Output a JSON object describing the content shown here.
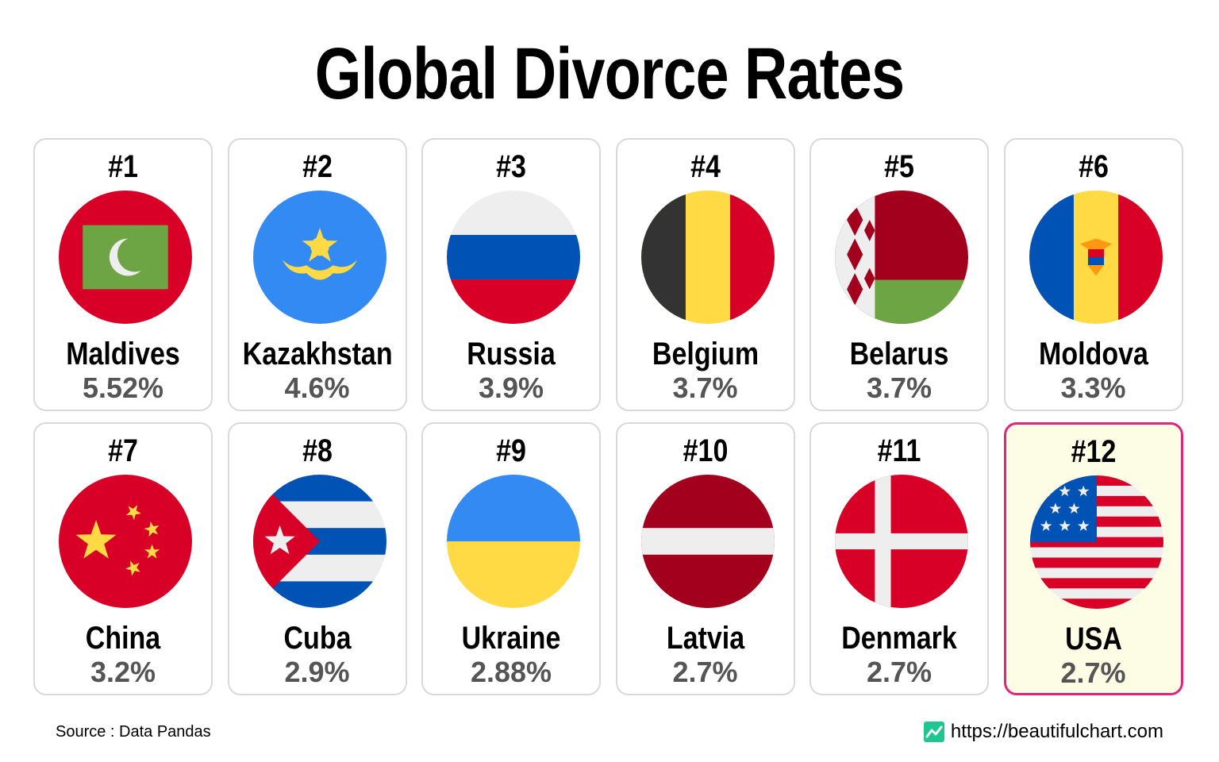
{
  "title": "Global Divorce Rates",
  "source": "Source : Data Pandas",
  "brand": {
    "icon": "chart-line-icon",
    "url": "https://beautifulchart.com",
    "color": "#1ec78f"
  },
  "colors": {
    "highlight_border": "#e0267a",
    "highlight_bg": "#fdfde6",
    "rate_text": "#555555"
  },
  "chart_data": {
    "type": "table",
    "title": "Global Divorce Rates",
    "unit": "%",
    "columns": [
      "rank",
      "country",
      "rate"
    ],
    "rows": [
      {
        "rank": "#1",
        "country": "Maldives",
        "rate": "5.52%",
        "value": 5.52,
        "flag": "maldives-flag-icon"
      },
      {
        "rank": "#2",
        "country": "Kazakhstan",
        "rate": "4.6%",
        "value": 4.6,
        "flag": "kazakhstan-flag-icon"
      },
      {
        "rank": "#3",
        "country": "Russia",
        "rate": "3.9%",
        "value": 3.9,
        "flag": "russia-flag-icon"
      },
      {
        "rank": "#4",
        "country": "Belgium",
        "rate": "3.7%",
        "value": 3.7,
        "flag": "belgium-flag-icon"
      },
      {
        "rank": "#5",
        "country": "Belarus",
        "rate": "3.7%",
        "value": 3.7,
        "flag": "belarus-flag-icon"
      },
      {
        "rank": "#6",
        "country": "Moldova",
        "rate": "3.3%",
        "value": 3.3,
        "flag": "moldova-flag-icon"
      },
      {
        "rank": "#7",
        "country": "China",
        "rate": "3.2%",
        "value": 3.2,
        "flag": "china-flag-icon"
      },
      {
        "rank": "#8",
        "country": "Cuba",
        "rate": "2.9%",
        "value": 2.9,
        "flag": "cuba-flag-icon"
      },
      {
        "rank": "#9",
        "country": "Ukraine",
        "rate": "2.88%",
        "value": 2.88,
        "flag": "ukraine-flag-icon"
      },
      {
        "rank": "#10",
        "country": "Latvia",
        "rate": "2.7%",
        "value": 2.7,
        "flag": "latvia-flag-icon"
      },
      {
        "rank": "#11",
        "country": "Denmark",
        "rate": "2.7%",
        "value": 2.7,
        "flag": "denmark-flag-icon"
      },
      {
        "rank": "#12",
        "country": "USA",
        "rate": "2.7%",
        "value": 2.7,
        "flag": "usa-flag-icon",
        "highlighted": true
      }
    ]
  }
}
